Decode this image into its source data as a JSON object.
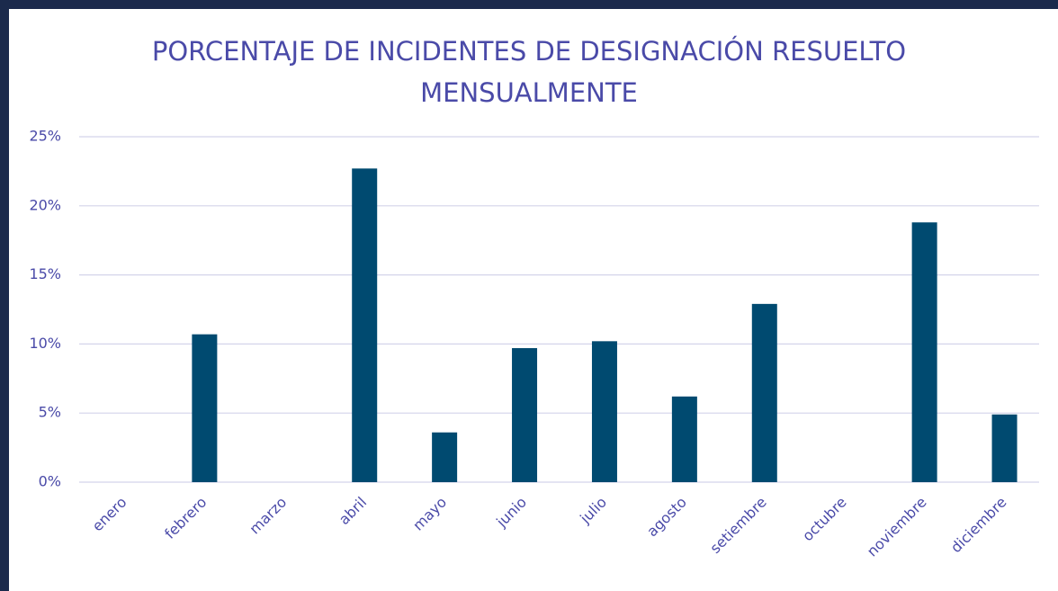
{
  "chart_data": {
    "type": "bar",
    "title": "PORCENTAJE DE INCIDENTES DE DESIGNACIÓN RESUELTO MENSUALMENTE",
    "categories": [
      "enero",
      "febrero",
      "marzo",
      "abril",
      "mayo",
      "junio",
      "julio",
      "agosto",
      "setiembre",
      "octubre",
      "noviembre",
      "diciembre"
    ],
    "values": [
      0,
      10.7,
      0,
      22.7,
      3.6,
      9.7,
      10.2,
      6.2,
      12.9,
      0,
      18.8,
      4.9
    ],
    "color": "#004a70",
    "ylim": [
      0,
      25
    ],
    "yticks": [
      {
        "value": 0,
        "label": "0%"
      },
      {
        "value": 5,
        "label": "5%"
      },
      {
        "value": 10,
        "label": "10%"
      },
      {
        "value": 15,
        "label": "15%"
      },
      {
        "value": 20,
        "label": "20%"
      },
      {
        "value": 25,
        "label": "25%"
      }
    ],
    "grid": true
  }
}
